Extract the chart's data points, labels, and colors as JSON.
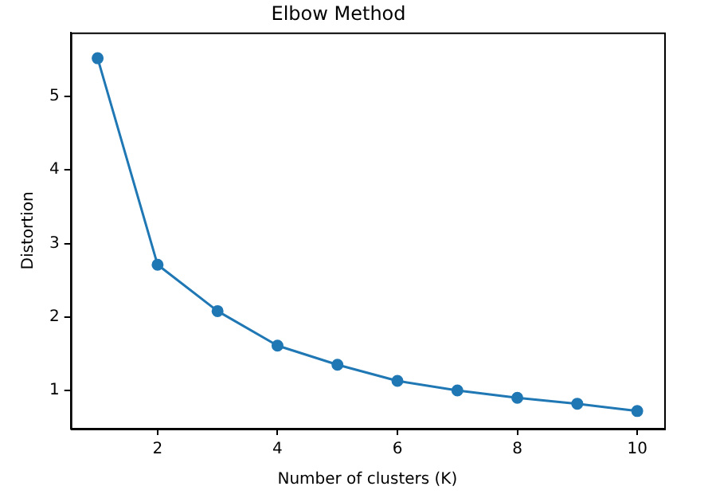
{
  "chart_data": {
    "type": "line",
    "title": "Elbow Method",
    "xlabel": "Number of clusters (K)",
    "ylabel": "Distortion",
    "x": [
      1,
      2,
      3,
      4,
      5,
      6,
      7,
      8,
      9,
      10
    ],
    "series": [
      {
        "color": "#1f77b4",
        "values": [
          5.52,
          2.71,
          2.08,
          1.61,
          1.35,
          1.13,
          1.0,
          0.9,
          0.82,
          0.72
        ]
      }
    ],
    "xlim": [
      0.55,
      10.45
    ],
    "xticks": [
      2,
      4,
      6,
      8,
      10
    ],
    "ylim": [
      0.48,
      5.87
    ],
    "yticks": [
      1,
      2,
      3,
      4,
      5
    ],
    "grid": false,
    "legend": false,
    "marker": "circle",
    "line_style": "solid"
  }
}
